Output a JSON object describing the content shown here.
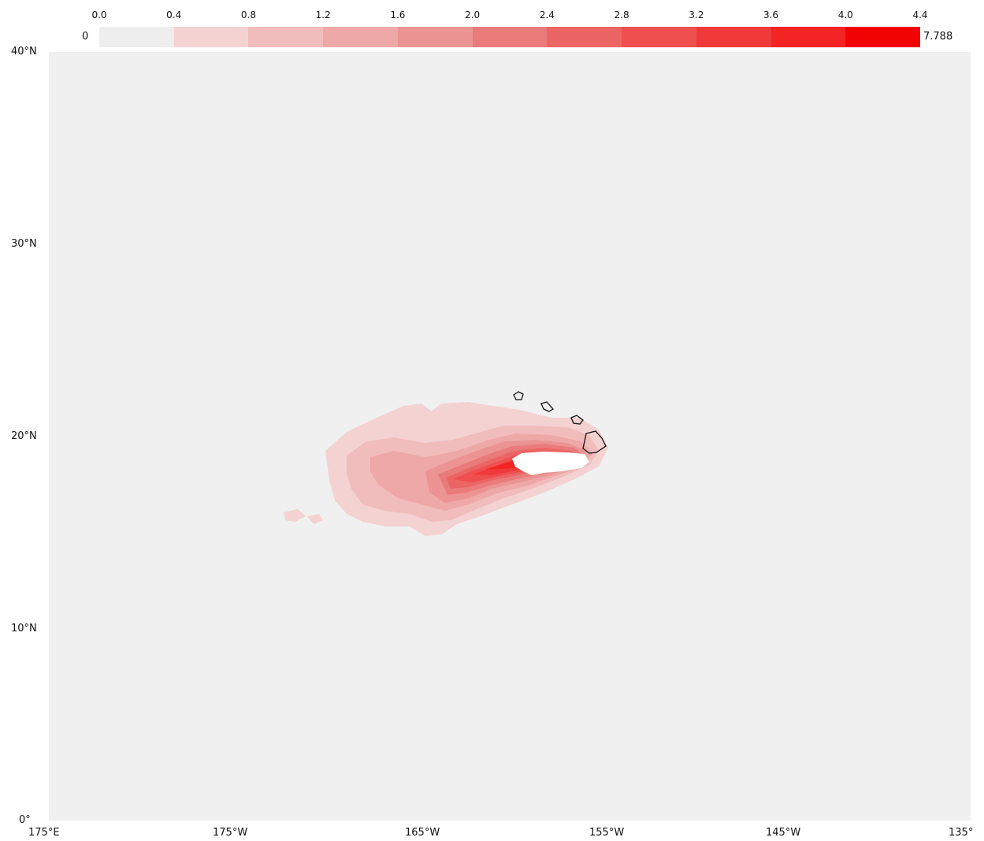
{
  "colorbar": {
    "min_label": "0",
    "max_label": "7.788",
    "tick_labels": [
      "0.0",
      "0.4",
      "0.8",
      "1.2",
      "1.6",
      "2.0",
      "2.4",
      "2.8",
      "3.2",
      "3.6",
      "4.0",
      "4.4"
    ],
    "colors": [
      "#eeeeee",
      "#f4d2d2",
      "#f1bcbc",
      "#eea8a8",
      "#ec9494",
      "#ea7b7b",
      "#ec6565",
      "#ef4f4f",
      "#f03a3a",
      "#f22424",
      "#f20404"
    ]
  },
  "map": {
    "background_color": "#f0f0f0",
    "lat_labels": [
      "40°N",
      "30°N",
      "20°N",
      "10°N",
      "0°"
    ],
    "lon_labels": [
      "175°E",
      "175°W",
      "165°W",
      "155°W",
      "145°W",
      "135°"
    ]
  }
}
